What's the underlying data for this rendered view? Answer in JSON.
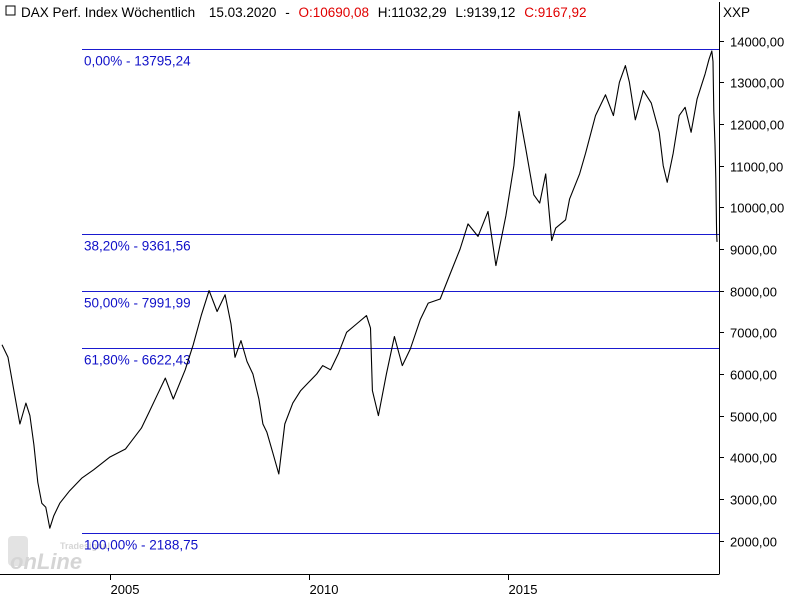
{
  "header": {
    "title": "DAX Perf. Index Wöchentlich",
    "date": "15.03.2020",
    "open": "O:10690,08",
    "high": "H:11032,29",
    "low": "L:9139,12",
    "close": "C:9167,92",
    "currency": "XXP"
  },
  "watermark": {
    "small": "Tradesignal",
    "big": "onLine"
  },
  "colors": {
    "price": "#000000",
    "fib": "#1a1acf",
    "fib_text": "#1010c8",
    "close": "#e00000",
    "frame": "#000000"
  },
  "chart_data": {
    "type": "line",
    "title": "DAX Perf. Index Wöchentlich",
    "xlabel": "",
    "ylabel": "",
    "ylim": [
      1200,
      14350
    ],
    "xlim": [
      2002.25,
      2020.3
    ],
    "y_ticks": [
      2000,
      3000,
      4000,
      5000,
      6000,
      7000,
      8000,
      9000,
      10000,
      11000,
      12000,
      13000,
      14000
    ],
    "y_tick_labels": [
      "2000,00",
      "3000,00",
      "4000,00",
      "5000,00",
      "6000,00",
      "7000,00",
      "8000,00",
      "9000,00",
      "10000,00",
      "11000,00",
      "12000,00",
      "13000,00",
      "14000,00"
    ],
    "x_ticks": [
      2005,
      2010,
      2015
    ],
    "x_tick_labels": [
      "2005",
      "2010",
      "2015"
    ],
    "fib_levels": [
      {
        "label": "0,00% - 13795,24",
        "value": 13795.24
      },
      {
        "label": "38,20% - 9361,56",
        "value": 9361.56
      },
      {
        "label": "50,00% - 7991,99",
        "value": 7991.99
      },
      {
        "label": "61,80% - 6622,43",
        "value": 6622.43
      },
      {
        "label": "100,00% - 2188,75",
        "value": 2188.75
      }
    ],
    "series": [
      {
        "points": [
          [
            2002.3,
            6700
          ],
          [
            2002.45,
            6400
          ],
          [
            2002.6,
            5600
          ],
          [
            2002.75,
            4800
          ],
          [
            2002.9,
            5300
          ],
          [
            2003.0,
            5000
          ],
          [
            2003.1,
            4300
          ],
          [
            2003.2,
            3400
          ],
          [
            2003.3,
            2900
          ],
          [
            2003.4,
            2800
          ],
          [
            2003.5,
            2300
          ],
          [
            2003.6,
            2600
          ],
          [
            2003.75,
            2900
          ],
          [
            2004.0,
            3200
          ],
          [
            2004.3,
            3500
          ],
          [
            2004.6,
            3700
          ],
          [
            2005.0,
            4000
          ],
          [
            2005.4,
            4200
          ],
          [
            2005.8,
            4700
          ],
          [
            2006.0,
            5100
          ],
          [
            2006.2,
            5500
          ],
          [
            2006.4,
            5900
          ],
          [
            2006.6,
            5400
          ],
          [
            2006.9,
            6100
          ],
          [
            2007.1,
            6700
          ],
          [
            2007.3,
            7400
          ],
          [
            2007.5,
            8000
          ],
          [
            2007.7,
            7500
          ],
          [
            2007.9,
            7900
          ],
          [
            2008.05,
            7200
          ],
          [
            2008.15,
            6400
          ],
          [
            2008.3,
            6800
          ],
          [
            2008.45,
            6300
          ],
          [
            2008.6,
            6000
          ],
          [
            2008.75,
            5400
          ],
          [
            2008.85,
            4800
          ],
          [
            2008.95,
            4600
          ],
          [
            2009.1,
            4100
          ],
          [
            2009.25,
            3600
          ],
          [
            2009.4,
            4800
          ],
          [
            2009.6,
            5300
          ],
          [
            2009.8,
            5600
          ],
          [
            2010.0,
            5800
          ],
          [
            2010.2,
            6000
          ],
          [
            2010.35,
            6200
          ],
          [
            2010.55,
            6100
          ],
          [
            2010.75,
            6500
          ],
          [
            2010.95,
            7000
          ],
          [
            2011.2,
            7200
          ],
          [
            2011.45,
            7400
          ],
          [
            2011.55,
            7100
          ],
          [
            2011.6,
            5600
          ],
          [
            2011.75,
            5000
          ],
          [
            2011.95,
            6000
          ],
          [
            2012.15,
            6900
          ],
          [
            2012.35,
            6200
          ],
          [
            2012.55,
            6600
          ],
          [
            2012.8,
            7300
          ],
          [
            2013.0,
            7700
          ],
          [
            2013.3,
            7800
          ],
          [
            2013.55,
            8400
          ],
          [
            2013.8,
            9000
          ],
          [
            2014.0,
            9600
          ],
          [
            2014.25,
            9300
          ],
          [
            2014.5,
            9900
          ],
          [
            2014.7,
            8600
          ],
          [
            2014.95,
            9800
          ],
          [
            2015.15,
            11000
          ],
          [
            2015.28,
            12300
          ],
          [
            2015.45,
            11400
          ],
          [
            2015.65,
            10300
          ],
          [
            2015.8,
            10100
          ],
          [
            2015.95,
            10800
          ],
          [
            2016.1,
            9200
          ],
          [
            2016.2,
            9500
          ],
          [
            2016.45,
            9700
          ],
          [
            2016.55,
            10200
          ],
          [
            2016.8,
            10800
          ],
          [
            2016.95,
            11300
          ],
          [
            2017.2,
            12200
          ],
          [
            2017.45,
            12700
          ],
          [
            2017.65,
            12200
          ],
          [
            2017.8,
            13000
          ],
          [
            2017.95,
            13400
          ],
          [
            2018.05,
            13000
          ],
          [
            2018.2,
            12100
          ],
          [
            2018.4,
            12800
          ],
          [
            2018.6,
            12500
          ],
          [
            2018.8,
            11800
          ],
          [
            2018.9,
            11000
          ],
          [
            2019.0,
            10600
          ],
          [
            2019.15,
            11300
          ],
          [
            2019.3,
            12200
          ],
          [
            2019.45,
            12400
          ],
          [
            2019.6,
            11800
          ],
          [
            2019.75,
            12600
          ],
          [
            2019.95,
            13200
          ],
          [
            2020.05,
            13550
          ],
          [
            2020.12,
            13750
          ],
          [
            2020.15,
            13500
          ],
          [
            2020.17,
            12300
          ],
          [
            2020.2,
            11500
          ],
          [
            2020.22,
            10700
          ],
          [
            2020.24,
            9400
          ],
          [
            2020.25,
            9170
          ]
        ]
      }
    ]
  }
}
